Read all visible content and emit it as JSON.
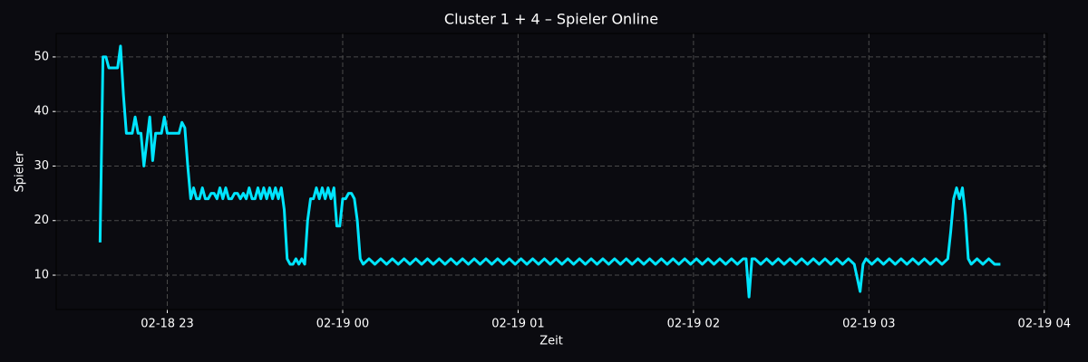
{
  "chart_data": {
    "type": "line",
    "title": "Cluster 1 + 4 – Spieler Online",
    "xlabel": "Zeit",
    "ylabel": "Spieler",
    "x": [
      "02-18 22:37",
      "02-18 22:38",
      "02-18 22:39",
      "02-18 22:40",
      "02-18 22:42",
      "02-18 22:43",
      "02-18 22:44",
      "02-18 22:45",
      "02-18 22:46",
      "02-18 22:48",
      "02-18 22:49",
      "02-18 22:50",
      "02-18 22:51",
      "02-18 22:52",
      "02-18 22:54",
      "02-18 22:55",
      "02-18 22:56",
      "02-18 22:58",
      "02-18 22:59",
      "02-18 23:00",
      "02-18 23:04",
      "02-18 23:05",
      "02-18 23:06",
      "02-18 23:07",
      "02-18 23:08",
      "02-18 23:09",
      "02-18 23:10",
      "02-18 23:11",
      "02-18 23:12",
      "02-18 23:13",
      "02-18 23:14",
      "02-18 23:15",
      "02-18 23:16",
      "02-18 23:17",
      "02-18 23:18",
      "02-18 23:19",
      "02-18 23:20",
      "02-18 23:21",
      "02-18 23:22",
      "02-18 23:23",
      "02-18 23:24",
      "02-18 23:25",
      "02-18 23:26",
      "02-18 23:27",
      "02-18 23:28",
      "02-18 23:29",
      "02-18 23:30",
      "02-18 23:31",
      "02-18 23:32",
      "02-18 23:33",
      "02-18 23:34",
      "02-18 23:35",
      "02-18 23:36",
      "02-18 23:37",
      "02-18 23:38",
      "02-18 23:39",
      "02-18 23:40",
      "02-18 23:41",
      "02-18 23:42",
      "02-18 23:43",
      "02-18 23:44",
      "02-18 23:45",
      "02-18 23:46",
      "02-18 23:47",
      "02-18 23:48",
      "02-18 23:49",
      "02-18 23:50",
      "02-18 23:51",
      "02-18 23:52",
      "02-18 23:53",
      "02-18 23:54",
      "02-18 23:55",
      "02-18 23:56",
      "02-18 23:57",
      "02-18 23:58",
      "02-18 23:59",
      "02-19 00:00",
      "02-19 00:01",
      "02-19 00:02",
      "02-19 00:03",
      "02-19 00:04",
      "02-19 00:05",
      "02-19 00:06",
      "02-19 00:07",
      "02-19 00:09",
      "02-19 00:11",
      "02-19 00:13",
      "02-19 00:15",
      "02-19 00:17",
      "02-19 00:19",
      "02-19 00:21",
      "02-19 00:23",
      "02-19 00:25",
      "02-19 00:27",
      "02-19 00:29",
      "02-19 00:31",
      "02-19 00:33",
      "02-19 00:35",
      "02-19 00:37",
      "02-19 00:39",
      "02-19 00:41",
      "02-19 00:43",
      "02-19 00:45",
      "02-19 00:47",
      "02-19 00:49",
      "02-19 00:51",
      "02-19 00:53",
      "02-19 00:55",
      "02-19 00:57",
      "02-19 00:59",
      "02-19 01:01",
      "02-19 01:03",
      "02-19 01:05",
      "02-19 01:07",
      "02-19 01:09",
      "02-19 01:11",
      "02-19 01:13",
      "02-19 01:15",
      "02-19 01:17",
      "02-19 01:19",
      "02-19 01:21",
      "02-19 01:23",
      "02-19 01:25",
      "02-19 01:27",
      "02-19 01:29",
      "02-19 01:31",
      "02-19 01:33",
      "02-19 01:35",
      "02-19 01:37",
      "02-19 01:39",
      "02-19 01:41",
      "02-19 01:43",
      "02-19 01:45",
      "02-19 01:47",
      "02-19 01:49",
      "02-19 01:51",
      "02-19 01:53",
      "02-19 01:55",
      "02-19 01:57",
      "02-19 01:59",
      "02-19 02:01",
      "02-19 02:03",
      "02-19 02:05",
      "02-19 02:07",
      "02-19 02:09",
      "02-19 02:11",
      "02-19 02:13",
      "02-19 02:15",
      "02-19 02:17",
      "02-19 02:18",
      "02-19 02:19",
      "02-19 02:20",
      "02-19 02:21",
      "02-19 02:23",
      "02-19 02:25",
      "02-19 02:27",
      "02-19 02:29",
      "02-19 02:31",
      "02-19 02:33",
      "02-19 02:35",
      "02-19 02:37",
      "02-19 02:39",
      "02-19 02:41",
      "02-19 02:43",
      "02-19 02:45",
      "02-19 02:47",
      "02-19 02:49",
      "02-19 02:51",
      "02-19 02:53",
      "02-19 02:55",
      "02-19 02:57",
      "02-19 02:58",
      "02-19 02:59",
      "02-19 03:01",
      "02-19 03:03",
      "02-19 03:05",
      "02-19 03:07",
      "02-19 03:09",
      "02-19 03:11",
      "02-19 03:13",
      "02-19 03:15",
      "02-19 03:17",
      "02-19 03:19",
      "02-19 03:21",
      "02-19 03:23",
      "02-19 03:25",
      "02-19 03:27",
      "02-19 03:28",
      "02-19 03:29",
      "02-19 03:30",
      "02-19 03:31",
      "02-19 03:32",
      "02-19 03:33",
      "02-19 03:34",
      "02-19 03:35",
      "02-19 03:37",
      "02-19 03:39",
      "02-19 03:41",
      "02-19 03:43",
      "02-19 03:45"
    ],
    "values": [
      16,
      50,
      50,
      48,
      48,
      48,
      52,
      43,
      36,
      36,
      39,
      36,
      36,
      30,
      39,
      31,
      36,
      36,
      39,
      36,
      36,
      38,
      37,
      30,
      24,
      26,
      24,
      24,
      26,
      24,
      24,
      25,
      25,
      24,
      26,
      24,
      26,
      24,
      24,
      25,
      25,
      24,
      25,
      24,
      26,
      24,
      24,
      26,
      24,
      26,
      24,
      26,
      24,
      26,
      24,
      26,
      22,
      13,
      12,
      12,
      13,
      12,
      13,
      12,
      20,
      24,
      24,
      26,
      24,
      26,
      24,
      26,
      24,
      26,
      19,
      19,
      24,
      24,
      25,
      25,
      24,
      20,
      13,
      12,
      13,
      12,
      13,
      12,
      13,
      12,
      13,
      12,
      13,
      12,
      13,
      12,
      13,
      12,
      13,
      12,
      13,
      12,
      13,
      12,
      13,
      12,
      13,
      12,
      13,
      12,
      13,
      12,
      13,
      12,
      13,
      12,
      13,
      12,
      13,
      12,
      13,
      12,
      13,
      12,
      13,
      12,
      13,
      12,
      13,
      12,
      13,
      12,
      13,
      12,
      13,
      12,
      13,
      12,
      13,
      12,
      13,
      12,
      13,
      12,
      13,
      12,
      13,
      12,
      13,
      13,
      6,
      13,
      13,
      12,
      13,
      12,
      13,
      12,
      13,
      12,
      13,
      12,
      13,
      12,
      13,
      12,
      13,
      12,
      13,
      12,
      7,
      12,
      13,
      12,
      13,
      12,
      13,
      12,
      13,
      12,
      13,
      12,
      13,
      12,
      13,
      12,
      13,
      18,
      24,
      26,
      24,
      26,
      21,
      13,
      12,
      13,
      12,
      13,
      12,
      12
    ],
    "color": "#00e5ff",
    "xlim": [
      "02-18 22:22",
      "02-19 04:01"
    ],
    "xticks": [
      "02-18 23",
      "02-19 00",
      "02-19 01",
      "02-19 02",
      "02-19 03",
      "02-19 04"
    ],
    "ylim": [
      3.7,
      54.3
    ],
    "yticks": [
      10,
      20,
      30,
      40,
      50
    ],
    "grid": true
  }
}
